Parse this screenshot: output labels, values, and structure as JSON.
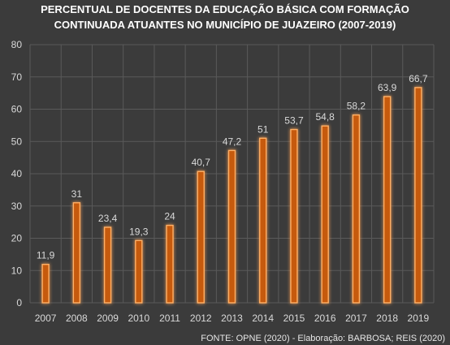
{
  "title": {
    "line1": "PERCENTUAL DE DOCENTES DA EDUCAÇÃO BÁSICA  COM FORMAÇÃO",
    "line2": "CONTINUADA ATUANTES NO MUNICÍPIO DE JUAZEIRO (2007-2019)"
  },
  "source": "FONTE: OPNE (2020) - Elaboração: BARBOSA; REIS (2020)",
  "colors": {
    "background": "#3b3b3b",
    "bar_fill": "#c65a11",
    "bar_stroke": "#ffb066",
    "bar_glow": "#ff7a1a",
    "grid": "#5a5a5a",
    "text": "#d9d9d9"
  },
  "chart_data": {
    "type": "bar",
    "categories": [
      "2007",
      "2008",
      "2009",
      "2010",
      "2011",
      "2012",
      "2013",
      "2014",
      "2015",
      "2016",
      "2017",
      "2018",
      "2019"
    ],
    "values": [
      11.9,
      31,
      23.4,
      19.3,
      24,
      40.7,
      47.2,
      51,
      53.7,
      54.8,
      58.2,
      63.9,
      66.7
    ],
    "data_labels": [
      "11,9",
      "31",
      "23,4",
      "19,3",
      "24",
      "40,7",
      "47,2",
      "51",
      "53,7",
      "54,8",
      "58,2",
      "63,9",
      "66,7"
    ],
    "yticks": [
      0,
      10,
      20,
      30,
      40,
      50,
      60,
      70,
      80
    ],
    "ylim": [
      0,
      80
    ],
    "grid": true,
    "vertical_grid": true,
    "legend": "none"
  }
}
